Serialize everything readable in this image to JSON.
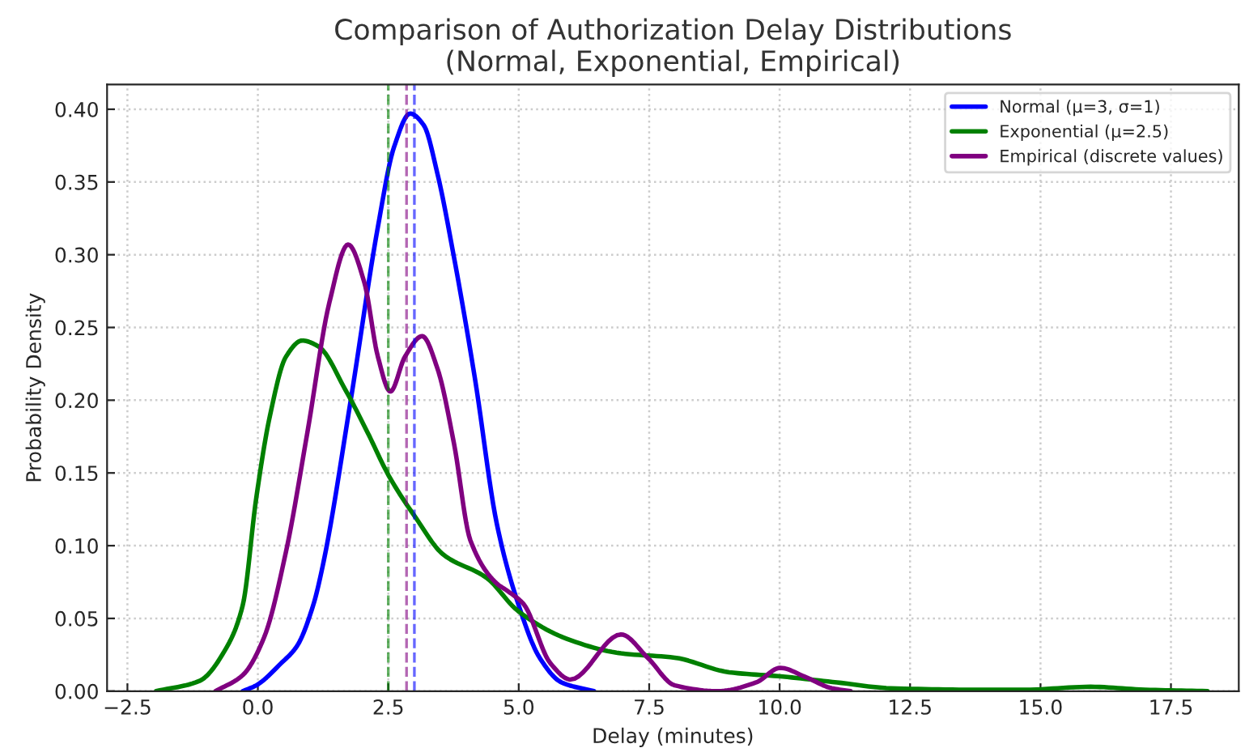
{
  "chart_data": {
    "type": "line",
    "title": "Comparison of Authorization Delay Distributions\n(Normal, Exponential, Empirical)",
    "xlabel": "Delay (minutes)",
    "ylabel": "Probability Density",
    "xlim": [
      -2.89,
      18.8
    ],
    "ylim": [
      0,
      0.417
    ],
    "xticks": [
      {
        "value": -2.5,
        "label": "−2.5"
      },
      {
        "value": 0,
        "label": "0.0"
      },
      {
        "value": 2.5,
        "label": "2.5"
      },
      {
        "value": 5,
        "label": "5.0"
      },
      {
        "value": 7.5,
        "label": "7.5"
      },
      {
        "value": 10,
        "label": "10.0"
      },
      {
        "value": 12.5,
        "label": "12.5"
      },
      {
        "value": 15,
        "label": "15.0"
      },
      {
        "value": 17.5,
        "label": "17.5"
      }
    ],
    "yticks": [
      {
        "value": 0,
        "label": "0.00"
      },
      {
        "value": 0.05,
        "label": "0.05"
      },
      {
        "value": 0.1,
        "label": "0.10"
      },
      {
        "value": 0.15,
        "label": "0.15"
      },
      {
        "value": 0.2,
        "label": "0.20"
      },
      {
        "value": 0.25,
        "label": "0.25"
      },
      {
        "value": 0.3,
        "label": "0.30"
      },
      {
        "value": 0.35,
        "label": "0.35"
      },
      {
        "value": 0.4,
        "label": "0.40"
      }
    ],
    "grid": true,
    "legend": "top right",
    "line_style": "solid",
    "marker": "none",
    "series": [
      {
        "name": "Normal (μ=3, σ=1)",
        "color": "#0000ff",
        "x": [
          -0.29,
          -0.03,
          0.44,
          0.75,
          1.06,
          1.26,
          1.78,
          2.3,
          2.61,
          2.92,
          3.18,
          3.44,
          3.75,
          4.16,
          4.58,
          4.99,
          5.4,
          5.82,
          6.44
        ],
        "values": [
          0,
          0.004,
          0.019,
          0.031,
          0.059,
          0.089,
          0.2,
          0.319,
          0.374,
          0.397,
          0.389,
          0.356,
          0.3,
          0.215,
          0.115,
          0.06,
          0.023,
          0.006,
          0
        ]
      },
      {
        "name": "Exponential (μ=2.5)",
        "color": "#008000",
        "x": [
          -1.95,
          -1.12,
          -0.6,
          -0.29,
          -0.03,
          0.23,
          0.54,
          0.85,
          1.16,
          1.68,
          2.1,
          2.51,
          3.03,
          3.55,
          4.38,
          4.99,
          5.92,
          6.96,
          7.99,
          9.03,
          10.06,
          11.1,
          12.13,
          13.7,
          14.7,
          15.96,
          17.0,
          18.2
        ],
        "values": [
          0,
          0.007,
          0.03,
          0.059,
          0.133,
          0.189,
          0.23,
          0.241,
          0.237,
          0.207,
          0.178,
          0.148,
          0.119,
          0.094,
          0.078,
          0.055,
          0.036,
          0.026,
          0.023,
          0.013,
          0.01,
          0.006,
          0.002,
          0.001,
          0.001,
          0.003,
          0.001,
          0
        ]
      },
      {
        "name": "Empirical (discrete values)",
        "color": "#800080",
        "x": [
          -0.81,
          -0.29,
          0.12,
          0.54,
          0.95,
          1.37,
          1.73,
          2.04,
          2.3,
          2.54,
          2.82,
          3.15,
          3.44,
          3.76,
          4.07,
          4.58,
          4.78,
          5.09,
          5.61,
          5.99,
          6.96,
          7.47,
          7.99,
          8.82,
          9.55,
          10.01,
          10.48,
          11.0,
          11.36
        ],
        "values": [
          0,
          0.011,
          0.037,
          0.096,
          0.178,
          0.267,
          0.307,
          0.281,
          0.23,
          0.206,
          0.23,
          0.244,
          0.222,
          0.17,
          0.104,
          0.074,
          0.069,
          0.06,
          0.019,
          0.008,
          0.039,
          0.023,
          0.004,
          0,
          0.006,
          0.016,
          0.01,
          0.002,
          0
        ]
      }
    ],
    "ref_lines": [
      {
        "axis": "x",
        "value": 2.5,
        "color": "#008000",
        "line_style": "dashed"
      },
      {
        "axis": "x",
        "value": 2.85,
        "color": "#800080",
        "line_style": "dashed"
      },
      {
        "axis": "x",
        "value": 3.0,
        "color": "#0000ff",
        "line_style": "dashed"
      }
    ]
  }
}
